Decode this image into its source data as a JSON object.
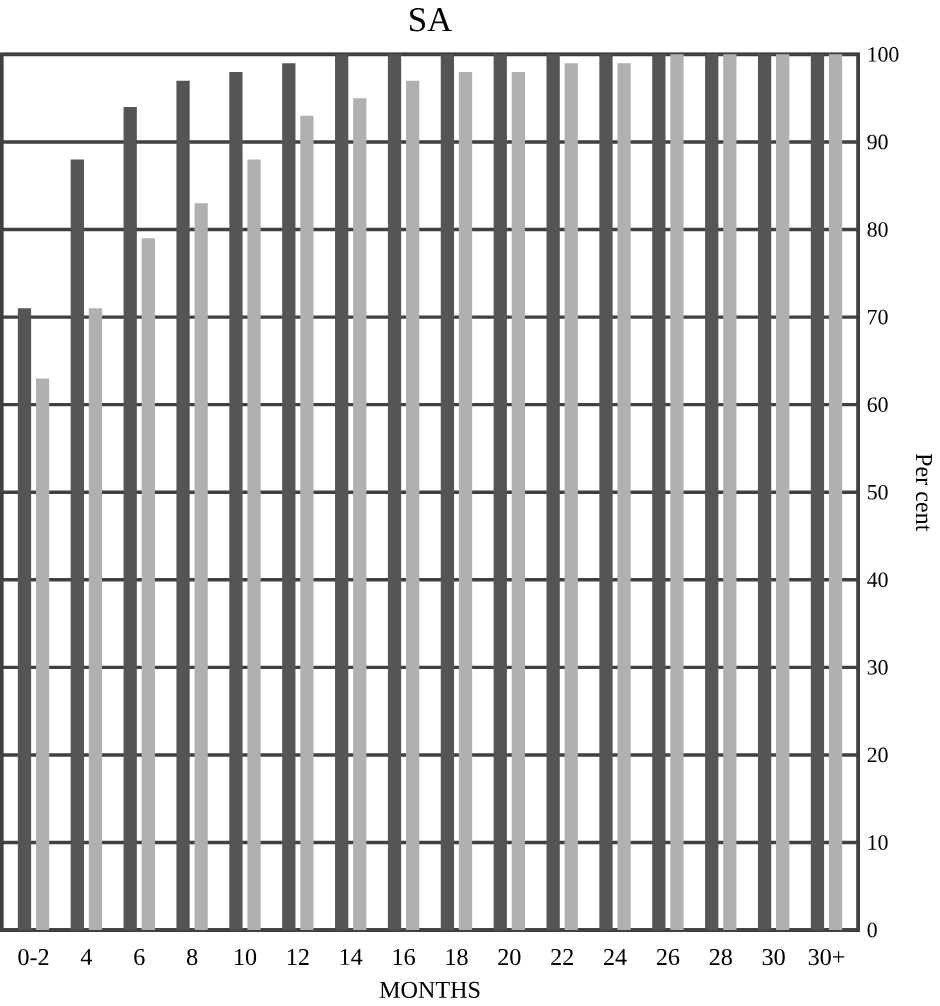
{
  "chart_data": {
    "type": "bar",
    "title": "SA",
    "xlabel": "MONTHS",
    "ylabel": "Per cent",
    "categories": [
      "0-2",
      "4",
      "6",
      "8",
      "10",
      "12",
      "14",
      "16",
      "18",
      "20",
      "22",
      "24",
      "26",
      "28",
      "30",
      "30+"
    ],
    "series": [
      {
        "color": "#555555",
        "values": [
          71,
          88,
          94,
          97,
          98,
          99,
          100,
          100,
          100,
          100,
          100,
          100,
          100,
          100,
          100,
          100
        ]
      },
      {
        "color": "#b0b0b0",
        "values": [
          63,
          71,
          79,
          83,
          88,
          93,
          95,
          97,
          98,
          98,
          99,
          99,
          100,
          100,
          100,
          100
        ]
      }
    ],
    "ylim": [
      0,
      100
    ],
    "yticks": [
      0,
      10,
      20,
      30,
      40,
      50,
      60,
      70,
      80,
      90,
      100
    ],
    "grid": "y"
  }
}
